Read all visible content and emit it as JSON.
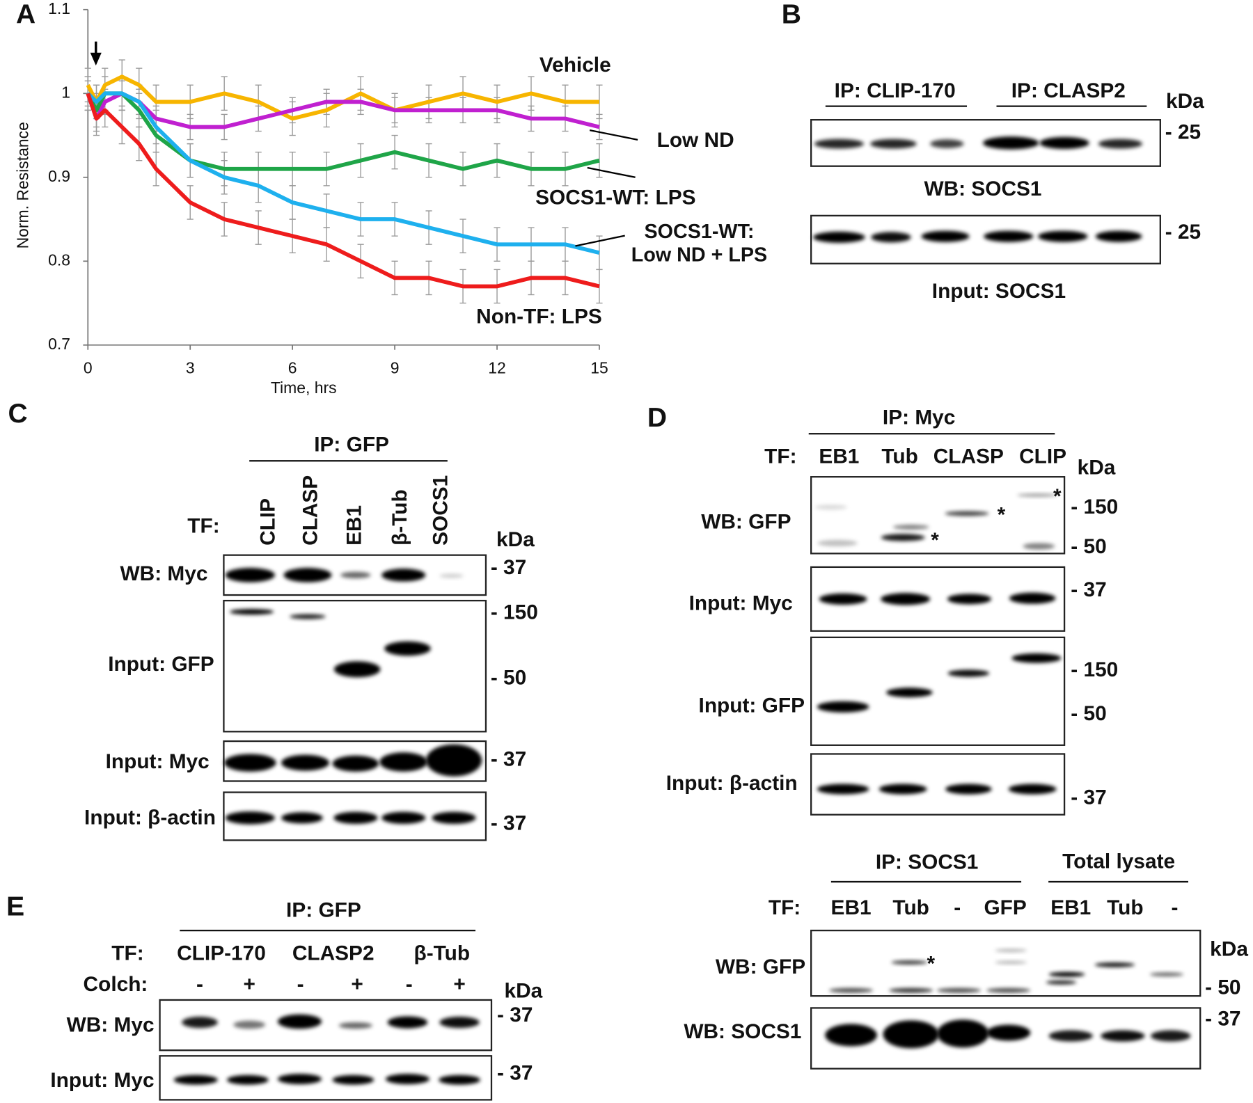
{
  "chart_data": {
    "type": "line",
    "panel_label": "A",
    "ylabel": "Norm. Resistance",
    "xlabel": "Time, hrs",
    "x": [
      0,
      0.25,
      0.5,
      1,
      1.5,
      2,
      3,
      4,
      5,
      6,
      7,
      8,
      9,
      10,
      11,
      12,
      13,
      14,
      15
    ],
    "xlim": [
      0,
      15
    ],
    "xticks": [
      0,
      3,
      6,
      9,
      12,
      15
    ],
    "ylim": [
      0.7,
      1.1
    ],
    "yticks": [
      0.7,
      0.8,
      0.9,
      1,
      1.1
    ],
    "series": [
      {
        "name": "Vehicle",
        "color": "#f7b500",
        "error": 0.02,
        "values": [
          1.01,
          0.99,
          1.01,
          1.02,
          1.01,
          0.99,
          0.99,
          1.0,
          0.99,
          0.97,
          0.98,
          1.0,
          0.98,
          0.99,
          1.0,
          0.99,
          1.0,
          0.99,
          0.99
        ]
      },
      {
        "name": "Low ND",
        "color": "#c020d0",
        "error": 0.015,
        "values": [
          1.0,
          0.97,
          0.99,
          1.0,
          0.99,
          0.97,
          0.96,
          0.96,
          0.97,
          0.98,
          0.99,
          0.99,
          0.98,
          0.98,
          0.98,
          0.98,
          0.97,
          0.97,
          0.96
        ]
      },
      {
        "name": "SOCS1-WT: LPS",
        "color": "#1fa548",
        "error": 0.02,
        "values": [
          1.0,
          0.98,
          1.0,
          1.0,
          0.98,
          0.95,
          0.92,
          0.91,
          0.91,
          0.91,
          0.91,
          0.92,
          0.93,
          0.92,
          0.91,
          0.92,
          0.91,
          0.91,
          0.92
        ]
      },
      {
        "name": "SOCS1-WT: Low ND + LPS",
        "color": "#1eb0ee",
        "error": 0.02,
        "values": [
          1.0,
          0.99,
          1.0,
          1.0,
          0.99,
          0.96,
          0.92,
          0.9,
          0.89,
          0.87,
          0.86,
          0.85,
          0.85,
          0.84,
          0.83,
          0.82,
          0.82,
          0.82,
          0.81
        ]
      },
      {
        "name": "Non-TF: LPS",
        "color": "#ee1c1c",
        "error": 0.02,
        "values": [
          1.0,
          0.97,
          0.98,
          0.96,
          0.94,
          0.91,
          0.87,
          0.85,
          0.84,
          0.83,
          0.82,
          0.8,
          0.78,
          0.78,
          0.77,
          0.77,
          0.78,
          0.78,
          0.77
        ]
      }
    ]
  },
  "panels": {
    "B": {
      "label": "B",
      "headers": [
        "IP: CLIP-170",
        "IP: CLASP2"
      ],
      "kda": "kDa",
      "blots": [
        {
          "caption": "WB: SOCS1",
          "markers": [
            "- 25"
          ]
        },
        {
          "caption": "Input: SOCS1",
          "markers": [
            "- 25"
          ]
        }
      ]
    },
    "C": {
      "label": "C",
      "header": "IP: GFP",
      "tf": "TF:",
      "lanes": [
        "CLIP",
        "CLASP",
        "EB1",
        "β-Tub",
        "SOCS1"
      ],
      "kda": "kDa",
      "blots": [
        {
          "caption": "WB: Myc",
          "markers": [
            "- 37"
          ]
        },
        {
          "caption": "Input: GFP",
          "markers": [
            "- 150",
            "- 50"
          ]
        },
        {
          "caption": "Input: Myc",
          "markers": [
            "- 37"
          ]
        },
        {
          "caption": "Input: β-actin",
          "markers": [
            "- 37"
          ]
        }
      ]
    },
    "D": {
      "label": "D",
      "header": "IP: Myc",
      "tf": "TF:",
      "lanes": [
        "EB1",
        "Tub",
        "CLASP",
        "CLIP"
      ],
      "kda": "kDa",
      "blots": [
        {
          "caption": "WB: GFP",
          "markers": [
            "- 150",
            "- 50"
          ],
          "asterisks": [
            "*",
            "*",
            "*"
          ]
        },
        {
          "caption": "Input: Myc",
          "markers": [
            "- 37"
          ]
        },
        {
          "caption": "Input: GFP",
          "markers": [
            "- 150",
            "- 50"
          ]
        },
        {
          "caption": "Input: β-actin",
          "markers": [
            "- 37"
          ]
        }
      ]
    },
    "D2": {
      "headers": [
        "IP: SOCS1",
        "Total lysate"
      ],
      "tf": "TF:",
      "lanes": [
        "EB1",
        "Tub",
        "-",
        "GFP",
        "EB1",
        "Tub",
        "-"
      ],
      "kda": "kDa",
      "blots": [
        {
          "caption": "WB: GFP",
          "markers": [
            "- 50"
          ],
          "asterisks": [
            "*"
          ]
        },
        {
          "caption": "WB: SOCS1",
          "markers": [
            "- 37"
          ]
        }
      ]
    },
    "E": {
      "label": "E",
      "header": "IP: GFP",
      "tf": "TF:",
      "groups": [
        "CLIP-170",
        "CLASP2",
        "β-Tub"
      ],
      "colch": "Colch:",
      "colch_lanes": [
        "-",
        "+",
        "-",
        "+",
        "-",
        "+"
      ],
      "kda": "kDa",
      "blots": [
        {
          "caption": "WB: Myc",
          "markers": [
            "- 37"
          ]
        },
        {
          "caption": "Input: Myc",
          "markers": [
            "- 37"
          ]
        }
      ]
    }
  }
}
